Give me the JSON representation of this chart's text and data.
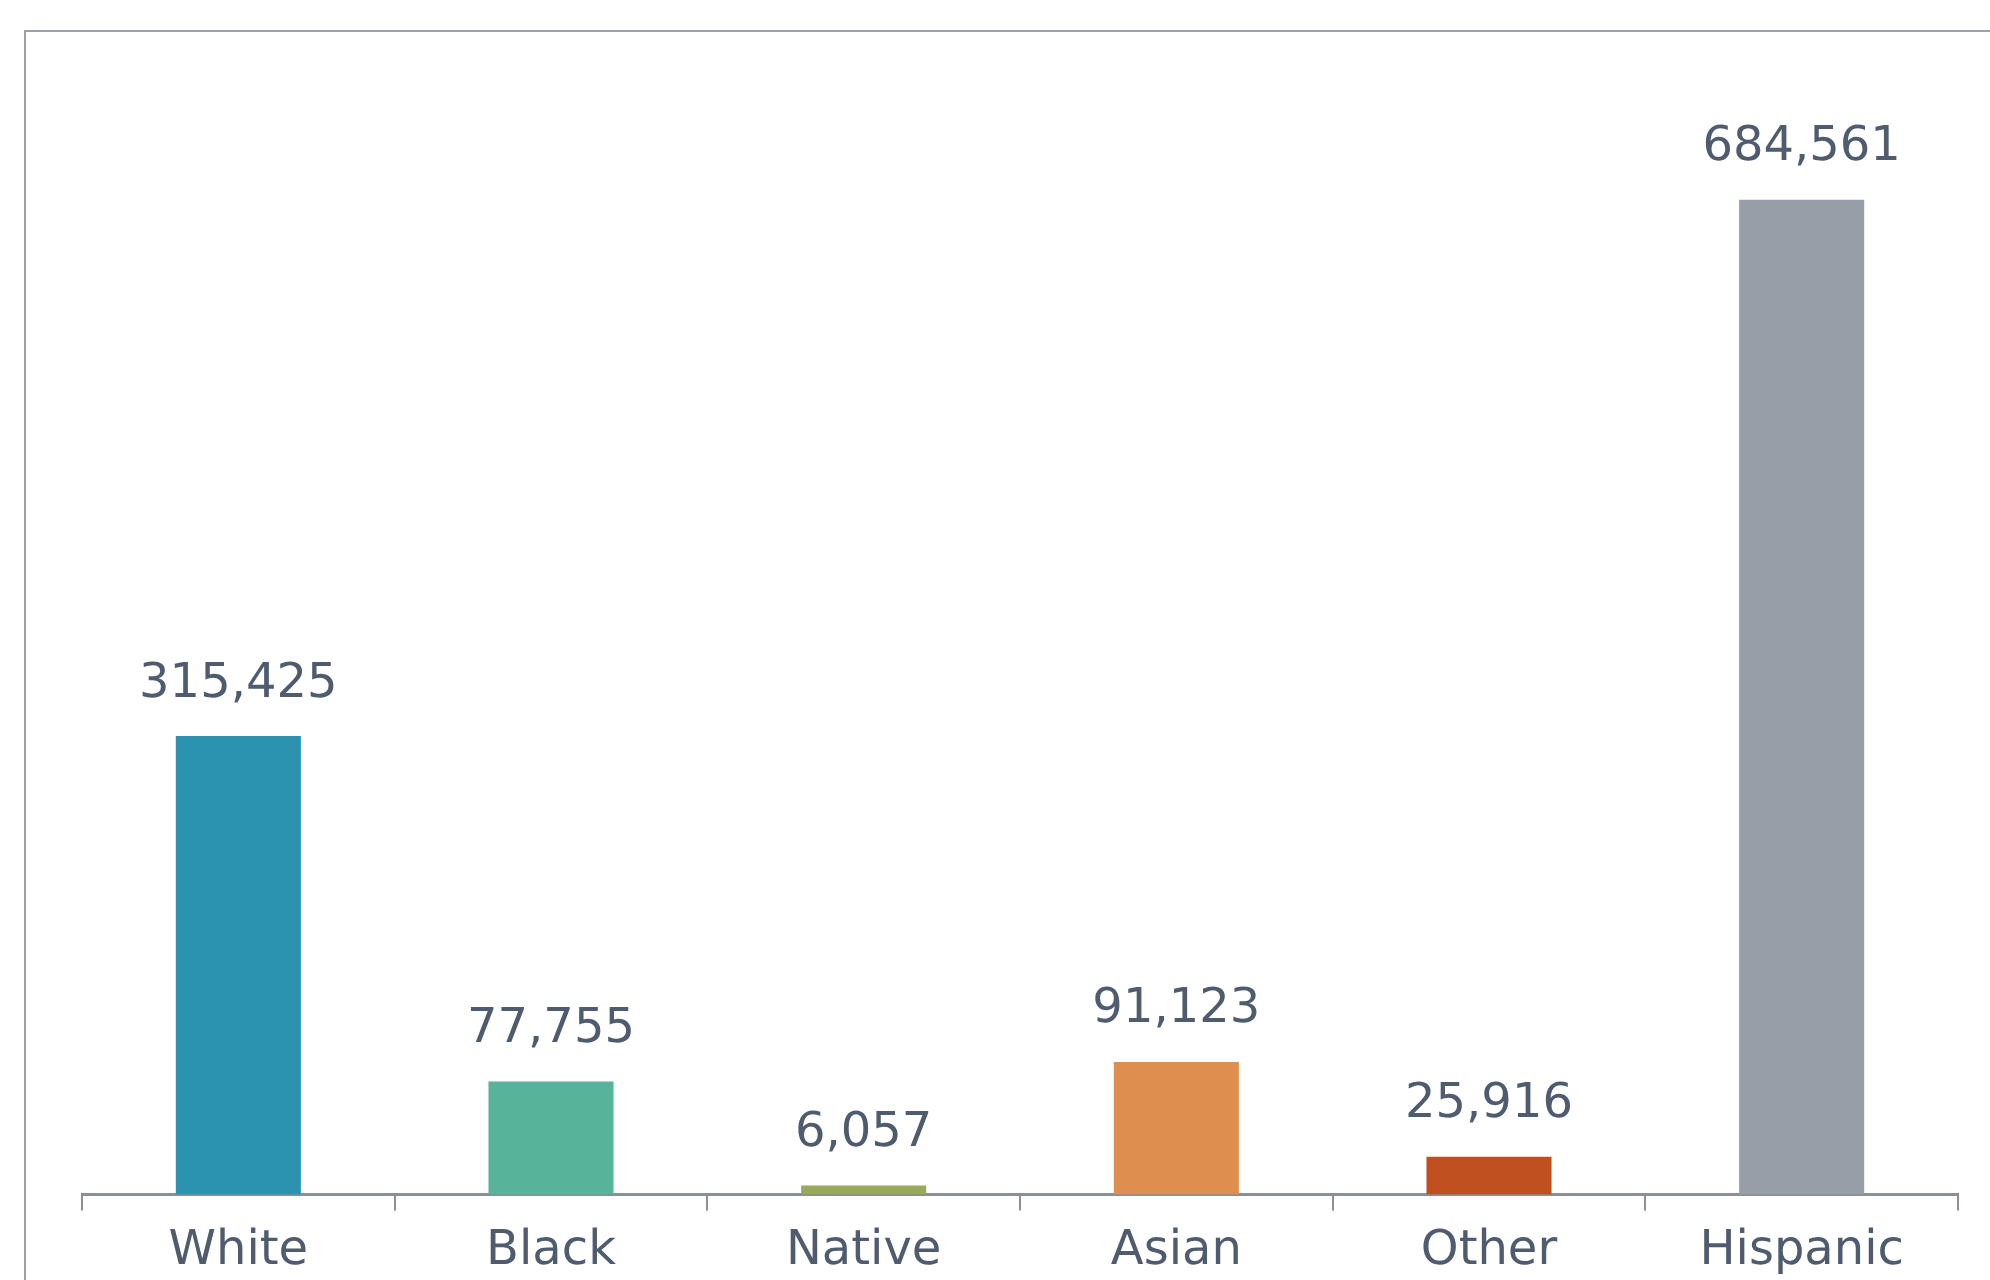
{
  "chart_data": {
    "type": "bar",
    "categories": [
      "White",
      "Black",
      "Native",
      "Asian",
      "Other",
      "Hispanic"
    ],
    "values": [
      315425,
      77755,
      6057,
      91123,
      25916,
      684561
    ],
    "colors": [
      "#2b93b0",
      "#57b49b",
      "#9aa85a",
      "#de8f50",
      "#c0501f",
      "#979ea8"
    ],
    "tick_labels": "x",
    "data_labels": true,
    "value_labels": [
      "315,425",
      "77,755",
      "6,057",
      "91,123",
      "25,916",
      "684,561"
    ],
    "legend": false,
    "grid": false
  }
}
